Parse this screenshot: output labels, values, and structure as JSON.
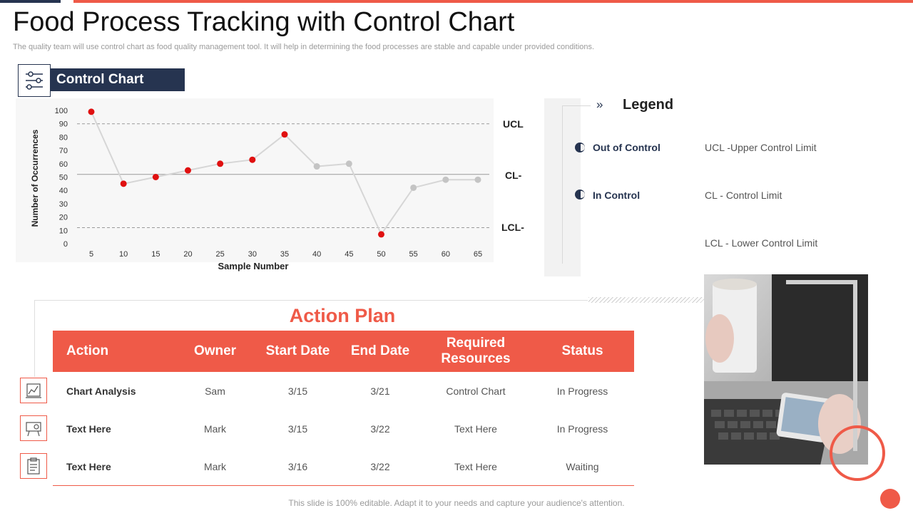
{
  "header": {
    "title": "Food Process Tracking with Control Chart",
    "subtitle": "The quality team will use control chart as food quality management tool. It will help in determining the food processes are stable and capable under provided conditions."
  },
  "control_chart": {
    "section_label": "Control Chart",
    "limit_labels": {
      "ucl": "UCL",
      "cl": "CL-",
      "lcl": "LCL-"
    }
  },
  "chart_data": {
    "type": "line",
    "xlabel": "Sample Number",
    "ylabel": "Number of Occurrences",
    "x": [
      5,
      10,
      15,
      20,
      25,
      30,
      35,
      40,
      45,
      50,
      55,
      60,
      65
    ],
    "y": [
      99,
      45,
      50,
      55,
      60,
      63,
      82,
      58,
      60,
      7,
      42,
      48,
      48
    ],
    "status": [
      "out",
      "out",
      "out",
      "out",
      "out",
      "out",
      "out",
      "in",
      "in",
      "out",
      "in",
      "in",
      "in"
    ],
    "ylim": [
      0,
      100
    ],
    "yticks": [
      0,
      10,
      20,
      30,
      40,
      50,
      60,
      70,
      80,
      90,
      100
    ],
    "ucl": 90,
    "cl": 52,
    "lcl": 12,
    "grid": false,
    "colors": {
      "out_of_control": "#e01010",
      "in_control": "#c4c4c4",
      "line": "#d6d6d6"
    }
  },
  "legend": {
    "title": "Legend",
    "items": [
      {
        "label": "Out of Control",
        "definition": "UCL -Upper Control Limit"
      },
      {
        "label": "In Control",
        "definition": "CL - Control Limit"
      }
    ],
    "extra_definition": "LCL - Lower Control Limit"
  },
  "action_plan": {
    "title": "Action Plan",
    "columns": [
      "Action",
      "Owner",
      "Start Date",
      "End Date",
      "Required Resources",
      "Status"
    ],
    "rows": [
      {
        "action": "Chart Analysis",
        "owner": "Sam",
        "start": "3/15",
        "end": "3/21",
        "resources": "Control Chart",
        "status": "In Progress",
        "icon": "analytics-icon"
      },
      {
        "action": "Text Here",
        "owner": "Mark",
        "start": "3/15",
        "end": "3/22",
        "resources": "Text Here",
        "status": "In Progress",
        "icon": "projector-icon"
      },
      {
        "action": "Text Here",
        "owner": "Mark",
        "start": "3/16",
        "end": "3/22",
        "resources": "Text Here",
        "status": "Waiting",
        "icon": "clipboard-icon"
      }
    ]
  },
  "footer": {
    "text": "This slide is 100% editable. Adapt it to your needs and capture your audience's attention."
  },
  "theme": {
    "navy": "#263450",
    "accent": "#ef5a48"
  }
}
